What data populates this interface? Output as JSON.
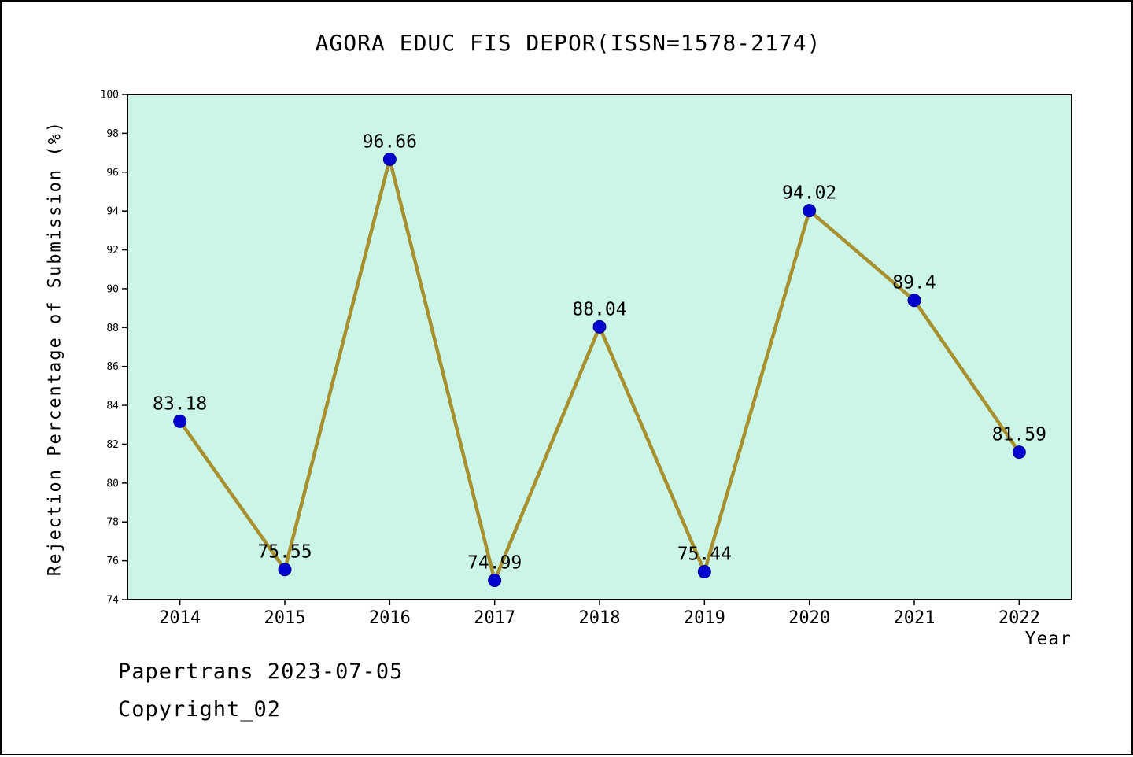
{
  "title": "AGORA EDUC FIS DEPOR(ISSN=1578-2174)",
  "footer": {
    "line1": "Papertrans 2023-07-05",
    "line2": "Copyright_02"
  },
  "chart_data": {
    "type": "line",
    "title": "AGORA EDUC FIS DEPOR(ISSN=1578-2174)",
    "xlabel": "Year",
    "ylabel": "Rejection Percentage of Submission (%)",
    "categories": [
      "2014",
      "2015",
      "2016",
      "2017",
      "2018",
      "2019",
      "2020",
      "2021",
      "2022"
    ],
    "values": [
      83.18,
      75.55,
      96.66,
      74.99,
      88.04,
      75.44,
      94.02,
      89.4,
      81.59
    ],
    "point_labels": [
      "83.18",
      "75.55",
      "96.66",
      "74.99",
      "88.04",
      "75.44",
      "94.02",
      "89.4",
      "81.59"
    ],
    "ylim": [
      74,
      100
    ],
    "ytick_step": 2,
    "grid": false,
    "legend": "none",
    "colors": {
      "line": "#a8902e",
      "marker": "#0404cf",
      "marker_edge": "#00008b",
      "plot_bg": "#cbf5e7",
      "axis": "#000000"
    }
  }
}
